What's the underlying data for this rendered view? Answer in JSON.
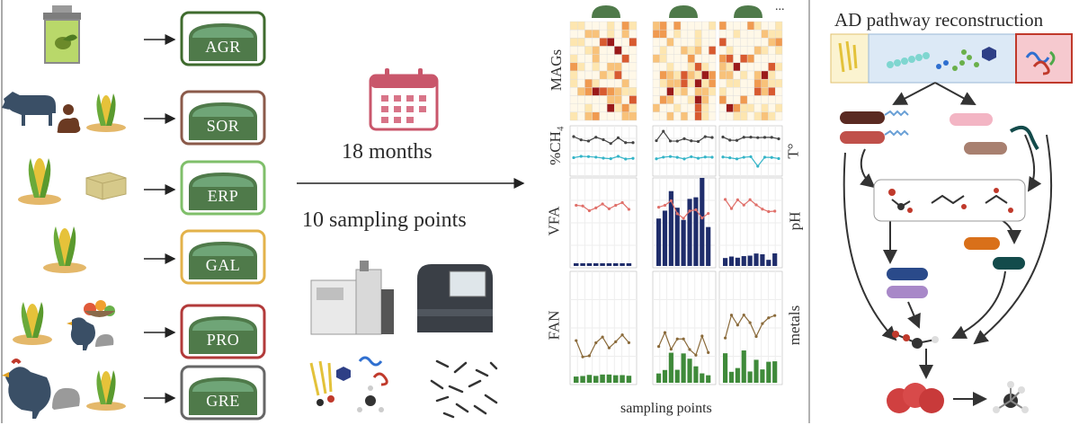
{
  "plants": [
    {
      "code": "AGR",
      "color": "#3f6b2e"
    },
    {
      "code": "SOR",
      "color": "#8b5a4a"
    },
    {
      "code": "ERP",
      "color": "#7fbf6a"
    },
    {
      "code": "GAL",
      "color": "#e3b24a"
    },
    {
      "code": "PRO",
      "color": "#b23a3a"
    },
    {
      "code": "GRE",
      "color": "#666666"
    }
  ],
  "timeline": {
    "duration": "18 months",
    "sampling": "10 sampling points"
  },
  "plots": {
    "mags_label": "MAGs",
    "ch4_label": "%CH₄",
    "temp_label": "T°",
    "vfa_label": "VFA",
    "ph_label": "pH",
    "fan_label": "FAN",
    "metals_label": "metals",
    "xlabel": "sampling points",
    "ellipsis": "..."
  },
  "pathway": {
    "title": "AD pathway reconstruction"
  },
  "colors": {
    "dome_green": "#4f7a4a",
    "heat_dark": "#8b1a1a",
    "bar_navy": "#1f2d6b",
    "bar_green": "#3f8a3a",
    "line_teal": "#35b5c8",
    "line_red": "#e0706a"
  }
}
